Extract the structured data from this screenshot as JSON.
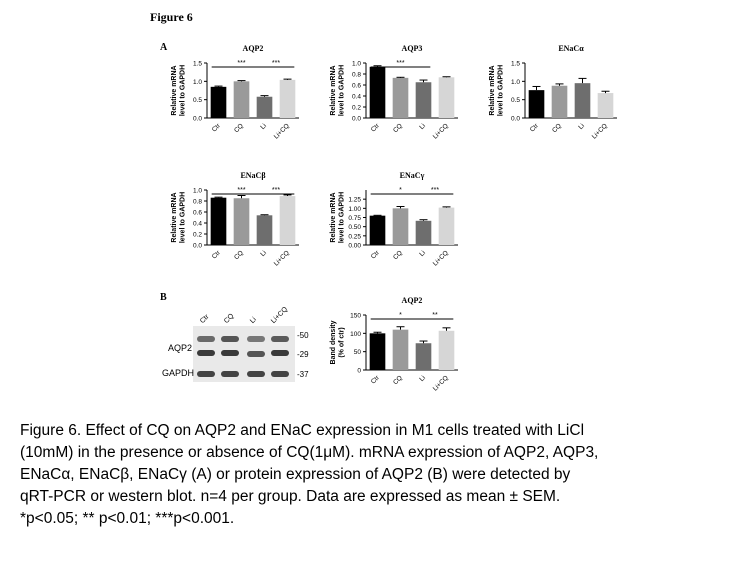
{
  "figure_title": "Figure 6",
  "panel_a_label": "A",
  "panel_b_label": "B",
  "chart_data": [
    {
      "type": "bar",
      "title": "AQP2",
      "ylabel": "Relative mRNA level to GAPDH",
      "categories": [
        "Ctr",
        "CQ",
        "Li",
        "Li+CQ"
      ],
      "values": [
        0.85,
        1.0,
        0.58,
        1.04
      ],
      "errors": [
        0.02,
        0.02,
        0.03,
        0.02
      ],
      "ylim": [
        0,
        1.5
      ],
      "yticks": [
        "0.0",
        "0.5",
        "1.0",
        "1.5"
      ],
      "significance": [
        {
          "from": 0,
          "to": 2,
          "label": "***"
        },
        {
          "from": 2,
          "to": 3,
          "label": "***"
        }
      ],
      "colors": [
        "#000000",
        "#9a9a9a",
        "#6e6e6e",
        "#d6d6d6"
      ]
    },
    {
      "type": "bar",
      "title": "AQP3",
      "ylabel": "Relative mRNA level to GAPDH",
      "categories": [
        "Ctr",
        "CQ",
        "Li",
        "Li+CQ"
      ],
      "values": [
        0.93,
        0.73,
        0.65,
        0.74
      ],
      "errors": [
        0.02,
        0.01,
        0.04,
        0.01
      ],
      "ylim": [
        0,
        1.0
      ],
      "yticks": [
        "0.0",
        "0.2",
        "0.4",
        "0.6",
        "0.8",
        "1.0"
      ],
      "significance": [
        {
          "from": 0,
          "to": 2,
          "label": "***"
        }
      ],
      "colors": [
        "#000000",
        "#9a9a9a",
        "#6e6e6e",
        "#d6d6d6"
      ]
    },
    {
      "type": "bar",
      "title": "ENaCα",
      "ylabel": "Relative mRNA level to GAPDH",
      "categories": [
        "Ctr",
        "CQ",
        "Li",
        "Li+CQ"
      ],
      "values": [
        0.76,
        0.88,
        0.95,
        0.68
      ],
      "errors": [
        0.1,
        0.05,
        0.13,
        0.05
      ],
      "ylim": [
        0,
        1.5
      ],
      "yticks": [
        "0.0",
        "0.5",
        "1.0",
        "1.5"
      ],
      "significance": [],
      "colors": [
        "#000000",
        "#9a9a9a",
        "#6e6e6e",
        "#d6d6d6"
      ]
    },
    {
      "type": "bar",
      "title": "ENaCβ",
      "ylabel": "Relative mRNA level to GAPDH",
      "categories": [
        "Ctr",
        "CQ",
        "Li",
        "Li+CQ"
      ],
      "values": [
        0.86,
        0.85,
        0.54,
        0.89
      ],
      "errors": [
        0.01,
        0.05,
        0.01,
        0.02
      ],
      "ylim": [
        0,
        1.0
      ],
      "yticks": [
        "0.0",
        "0.2",
        "0.4",
        "0.6",
        "0.8",
        "1.0"
      ],
      "significance": [
        {
          "from": 0,
          "to": 2,
          "label": "***"
        },
        {
          "from": 2,
          "to": 3,
          "label": "***"
        }
      ],
      "colors": [
        "#000000",
        "#9a9a9a",
        "#6e6e6e",
        "#d6d6d6"
      ]
    },
    {
      "type": "bar",
      "title": "ENaCγ",
      "ylabel": "Relative mRNA level to GAPDH",
      "categories": [
        "Ctr",
        "CQ",
        "Li",
        "Li+CQ"
      ],
      "values": [
        0.8,
        1.0,
        0.66,
        1.02
      ],
      "errors": [
        0.01,
        0.05,
        0.03,
        0.02
      ],
      "ylim": [
        0,
        1.5
      ],
      "yticks": [
        "0.00",
        "0.25",
        "0.50",
        "0.75",
        "1.00",
        "1.25"
      ],
      "ytick_values": [
        0,
        0.25,
        0.5,
        0.75,
        1.0,
        1.25
      ],
      "significance": [
        {
          "from": 0,
          "to": 2,
          "label": "*"
        },
        {
          "from": 2,
          "to": 3,
          "label": "***"
        }
      ],
      "colors": [
        "#000000",
        "#9a9a9a",
        "#6e6e6e",
        "#d6d6d6"
      ]
    },
    {
      "type": "bar",
      "title": "AQP2",
      "ylabel": "Band density (% of ctr)",
      "categories": [
        "Ctr",
        "CQ",
        "Li",
        "Li+CQ"
      ],
      "values": [
        100,
        110,
        73,
        107
      ],
      "errors": [
        3,
        8,
        6,
        8
      ],
      "ylim": [
        0,
        150
      ],
      "yticks": [
        "0",
        "50",
        "100",
        "150"
      ],
      "significance": [
        {
          "from": 0,
          "to": 2,
          "label": "*"
        },
        {
          "from": 2,
          "to": 3,
          "label": "**"
        }
      ],
      "colors": [
        "#000000",
        "#9a9a9a",
        "#6e6e6e",
        "#d6d6d6"
      ]
    }
  ],
  "blot": {
    "lanes": [
      "Ctr",
      "CQ",
      "Li",
      "Li+CQ"
    ],
    "rows": [
      "AQP2",
      "GAPDH"
    ],
    "markers": [
      "-50",
      "-29",
      "-37"
    ]
  },
  "caption": [
    "Figure 6. Effect of CQ on AQP2 and ENaC expression in M1 cells treated with LiCl",
    " (10mM) in the presence or absence of CQ(1μM). mRNA expression of AQP2, AQP3,",
    "ENaCα, ENaCβ, ENaCγ (A) or protein expression of AQP2 (B) were detected by",
    "qRT-PCR or western blot. n=4 per group. Data are expressed as mean ± SEM.",
    "*p<0.05; ** p<0.01; ***p<0.001."
  ]
}
